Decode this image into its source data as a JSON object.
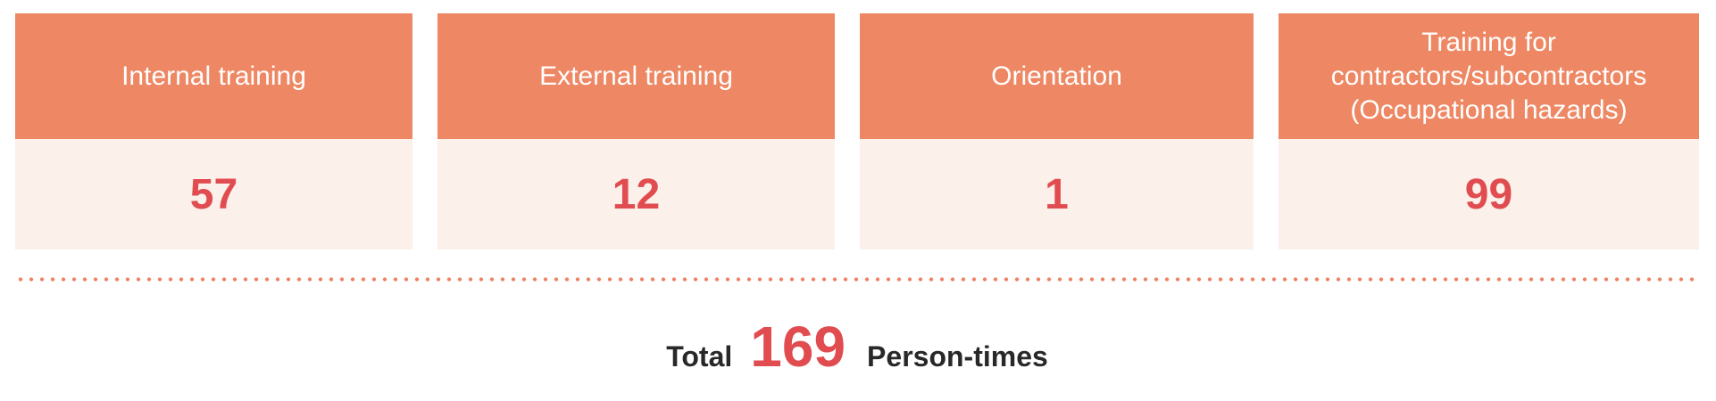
{
  "chart_data": {
    "type": "table",
    "title": "",
    "categories": [
      "Internal training",
      "External training",
      "Orientation",
      "Training for contractors/subcontractors (Occupational hazards)"
    ],
    "values": [
      57,
      12,
      1,
      99
    ],
    "total_label": "Total",
    "total_value": 169,
    "unit": "Person-times",
    "layout": "four stat cards in a row, dotted divider below, centered total line"
  },
  "cards": [
    {
      "label": "Internal training",
      "value": "57"
    },
    {
      "label": "External training",
      "value": "12"
    },
    {
      "label": "Orientation",
      "value": "1"
    },
    {
      "label": "Training for contractors/subcontractors (Occupational hazards)",
      "value": "99"
    }
  ],
  "total": {
    "label": "Total",
    "value": "169",
    "unit": "Person-times"
  },
  "colors": {
    "card_header_bg": "#EE8763",
    "card_body_bg": "#FBF0EA",
    "value_red": "#E04C50",
    "divider_dot": "#EE8160",
    "text_dark": "#282828",
    "header_text": "#FFFFFF",
    "background": "#FFFFFF"
  }
}
